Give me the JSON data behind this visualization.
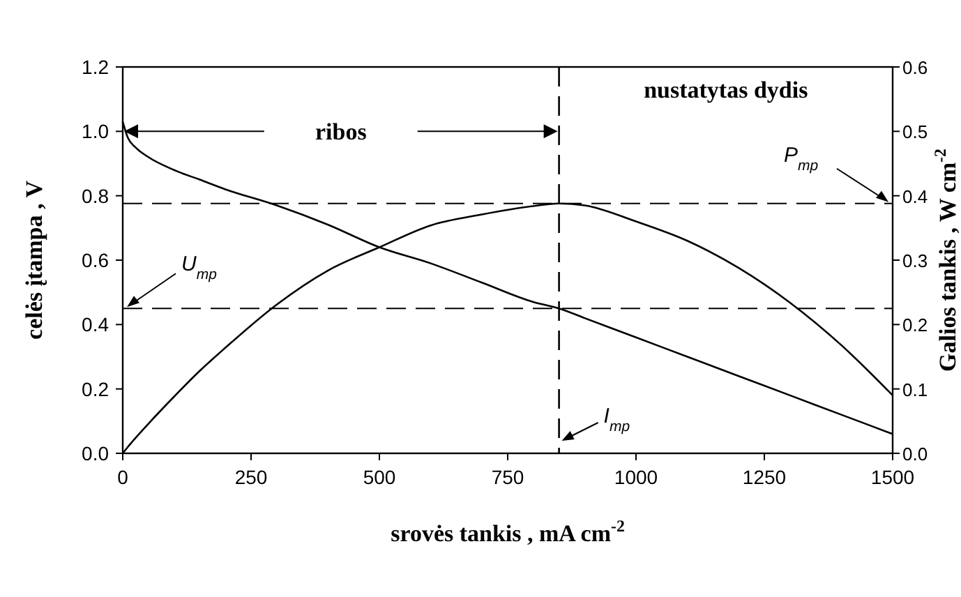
{
  "chart_data": {
    "type": "line",
    "xlabel": "srovės tankis , mA cm$^{-2}$",
    "ylabel": "celės įtampa , V",
    "y2label": "Galios tankis , W cm$^{-2}$",
    "x": [
      0,
      10,
      25,
      50,
      100,
      150,
      200,
      300,
      400,
      500,
      600,
      700,
      800,
      850,
      900,
      1000,
      1100,
      1200,
      1300,
      1400,
      1500
    ],
    "series": [
      {
        "color": "#000000",
        "values": [
          1.03,
          0.98,
          0.95,
          0.92,
          0.88,
          0.85,
          0.82,
          0.77,
          0.71,
          0.64,
          0.59,
          0.53,
          0.47,
          0.45,
          0.42,
          0.36,
          0.3,
          0.24,
          0.18,
          0.12,
          0.06
        ]
      },
      {
        "color": "#000000",
        "axis": "y2",
        "values": [
          0,
          0.01,
          0.024,
          0.046,
          0.088,
          0.128,
          0.164,
          0.231,
          0.284,
          0.32,
          0.354,
          0.371,
          0.384,
          0.388,
          0.385,
          0.36,
          0.33,
          0.288,
          0.234,
          0.168,
          0.09
        ]
      }
    ],
    "xlim": [
      0,
      1500
    ],
    "xticks": [
      0,
      250,
      500,
      750,
      1000,
      1250,
      1500
    ],
    "ylim": [
      0,
      1.2
    ],
    "yticks": [
      {
        "value": 0,
        "label": "0.0"
      },
      0.2,
      0.4,
      0.6,
      0.8,
      {
        "value": 1,
        "label": "1.0"
      },
      {
        "value": 1.2,
        "label": "1.2"
      }
    ],
    "y2lim": [
      0,
      0.6
    ],
    "y2ticks": [
      {
        "value": 0,
        "label": "0.0"
      },
      0.1,
      0.2,
      0.3,
      0.4,
      0.5,
      0.6
    ],
    "ref_lines": [
      {
        "axis": "x",
        "value": 850,
        "label": "I$_{mp}$",
        "line_style": "dashed"
      },
      {
        "axis": "y",
        "value": 0.45,
        "label": "U$_{mp}$",
        "line_style": "dashed"
      },
      {
        "axis": "y2",
        "value": 0.388,
        "label": "P$_{mp}$",
        "line_style": "dashed"
      }
    ],
    "annotations": [
      "ribos",
      "nustatytas dydis"
    ],
    "marker": "none",
    "line_style": "solid"
  }
}
